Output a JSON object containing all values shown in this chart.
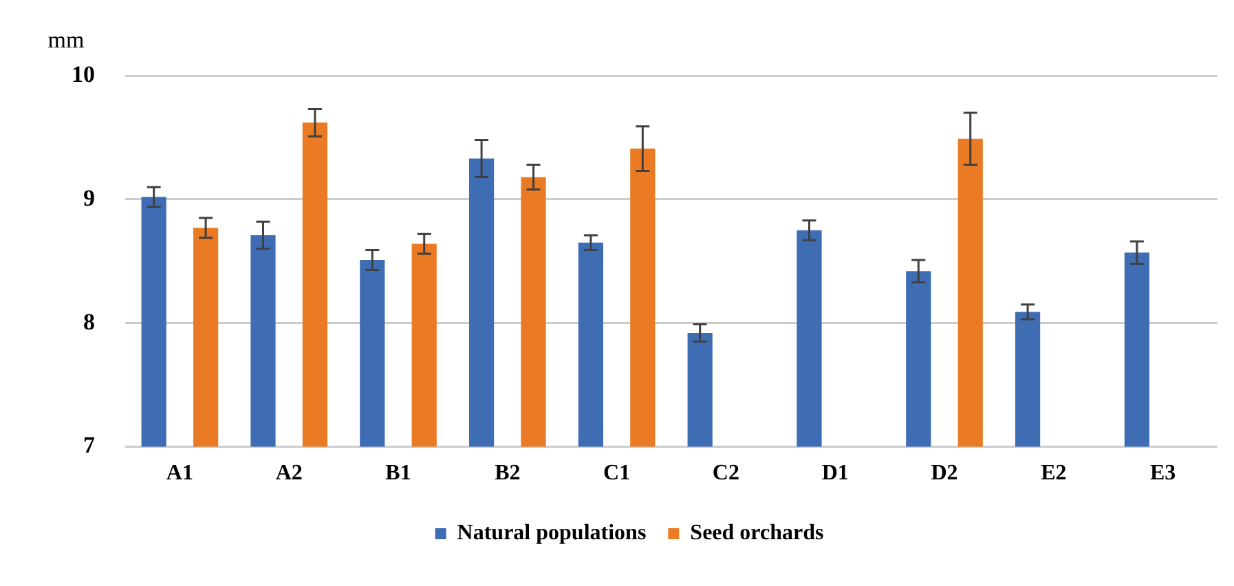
{
  "chart_data": {
    "type": "bar",
    "ylabel": "mm",
    "categories": [
      "A1",
      "A2",
      "B1",
      "B2",
      "C1",
      "C2",
      "D1",
      "D2",
      "E2",
      "E3"
    ],
    "series": [
      {
        "name": "Natural populations",
        "color": "#3f6db4",
        "values": [
          9.02,
          8.71,
          8.51,
          9.33,
          8.65,
          7.92,
          8.75,
          8.42,
          8.09,
          8.57
        ],
        "errors": [
          0.08,
          0.11,
          0.08,
          0.15,
          0.06,
          0.07,
          0.08,
          0.09,
          0.06,
          0.09
        ]
      },
      {
        "name": "Seed orchards",
        "color": "#ea7a23",
        "values": [
          8.77,
          9.62,
          8.64,
          9.18,
          9.41,
          null,
          null,
          9.49,
          null,
          null
        ],
        "errors": [
          0.08,
          0.11,
          0.08,
          0.1,
          0.18,
          null,
          null,
          0.21,
          null,
          null
        ]
      }
    ],
    "ylim": [
      7,
      10
    ],
    "yticks": [
      7,
      8,
      9,
      10
    ],
    "grid": "y",
    "legend": "bottom"
  }
}
